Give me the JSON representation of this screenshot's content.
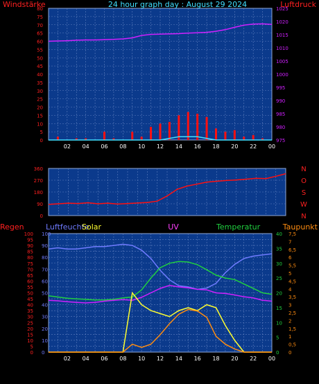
{
  "header": {
    "left": "Windstärke",
    "center": "24 hour graph day : August 29 2024",
    "right": "Luftdruck"
  },
  "colors": {
    "background": "#000000",
    "plot_bg": "#0b3a8c",
    "grid": "#5f7fbf",
    "red": "#ff1010",
    "cyan": "#40e0ff",
    "magenta": "#d020ff",
    "blue_humidity": "#6f7bff",
    "green": "#20d040",
    "yellow": "#ffff30",
    "orange": "#ff8c10",
    "pink": "#ff40ff"
  },
  "chart_data": [
    {
      "type": "line",
      "panel": "wind-pressure",
      "x": [
        0,
        1,
        2,
        3,
        4,
        5,
        6,
        7,
        8,
        9,
        10,
        11,
        12,
        13,
        14,
        15,
        16,
        17,
        18,
        19,
        20,
        21,
        22,
        23,
        24
      ],
      "x_tick_labels": [
        "02",
        "04",
        "06",
        "08",
        "10",
        "12",
        "14",
        "16",
        "18",
        "20",
        "22",
        "00"
      ],
      "left_axis": {
        "label": "Windstärke",
        "ticks": [
          "0",
          "5",
          "10",
          "15",
          "20",
          "25",
          "30",
          "35",
          "40",
          "45",
          "50",
          "55",
          "60",
          "65",
          "70",
          "75",
          "80"
        ],
        "ylim": [
          0,
          80
        ]
      },
      "right_axis": {
        "label": "Luftdruck",
        "ticks": [
          "975",
          "980",
          "985",
          "990",
          "995",
          "1000",
          "1005",
          "1010",
          "1015",
          "1020",
          "1025"
        ],
        "ylim": [
          975,
          1025
        ]
      },
      "series": [
        {
          "name": "Luftdruck",
          "color": "#d020ff",
          "axis": "right",
          "values": [
            1012.5,
            1012.6,
            1012.7,
            1012.9,
            1013.0,
            1013.0,
            1013.1,
            1013.2,
            1013.4,
            1013.8,
            1014.7,
            1015.1,
            1015.2,
            1015.3,
            1015.4,
            1015.6,
            1015.7,
            1015.9,
            1016.3,
            1016.9,
            1017.8,
            1018.6,
            1019.0,
            1019.1,
            1018.9
          ]
        },
        {
          "color": "#ff1010",
          "axis": "left",
          "style": "bars",
          "values": [
            0,
            2,
            0,
            1,
            1,
            0,
            5,
            1,
            0,
            5,
            2,
            8,
            10,
            11,
            15,
            17,
            16,
            14,
            7,
            5,
            6,
            2,
            3,
            1,
            0
          ]
        },
        {
          "color": "#40e0ff",
          "axis": "left",
          "values": [
            0,
            0,
            0,
            0,
            0,
            0,
            0,
            0,
            0,
            0,
            0,
            0,
            0,
            1,
            2,
            2,
            2,
            1,
            0,
            0,
            0,
            0,
            0,
            0,
            0
          ]
        }
      ]
    },
    {
      "type": "line",
      "panel": "wind-direction",
      "x": [
        0,
        1,
        2,
        3,
        4,
        5,
        6,
        7,
        8,
        9,
        10,
        11,
        12,
        13,
        14,
        15,
        16,
        17,
        18,
        19,
        20,
        21,
        22,
        23,
        24
      ],
      "x_tick_labels": [
        "02",
        "04",
        "06",
        "08",
        "10",
        "12",
        "14",
        "16",
        "18",
        "20",
        "22",
        "00"
      ],
      "left_axis": {
        "ticks": [
          "0",
          "90",
          "180",
          "270",
          "360"
        ],
        "ylim": [
          0,
          360
        ]
      },
      "right_axis": {
        "ticks": [
          "N",
          "W",
          "S",
          "O",
          "N"
        ]
      },
      "series": [
        {
          "color": "#ff1010",
          "values": [
            85,
            90,
            95,
            92,
            98,
            90,
            95,
            88,
            92,
            96,
            100,
            110,
            150,
            200,
            225,
            240,
            255,
            262,
            268,
            272,
            278,
            285,
            282,
            300,
            320
          ]
        }
      ]
    },
    {
      "type": "line",
      "panel": "weather",
      "x": [
        0,
        1,
        2,
        3,
        4,
        5,
        6,
        7,
        8,
        9,
        10,
        11,
        12,
        13,
        14,
        15,
        16,
        17,
        18,
        19,
        20,
        21,
        22,
        23,
        24
      ],
      "x_tick_labels": [
        "02",
        "04",
        "06",
        "08",
        "10",
        "12",
        "14",
        "16",
        "18",
        "20",
        "22",
        "00"
      ],
      "header_labels": {
        "rain": "Regen",
        "humidity": "Luftfeuchte",
        "solar": "Solar",
        "uv": "UV",
        "temperature": "Temperatur",
        "dewpoint": "Taupunkt"
      },
      "axes": {
        "rain": {
          "ticks": [
            "0",
            "5",
            "10",
            "15",
            "20",
            "25",
            "30",
            "35",
            "40",
            "45",
            "50",
            "55",
            "60",
            "65",
            "70",
            "75",
            "80",
            "85",
            "90",
            "95",
            "100"
          ],
          "ylim": [
            0,
            100
          ]
        },
        "humidity": {
          "ticks": [
            "0",
            "10",
            "20",
            "30",
            "40",
            "50",
            "60",
            "70",
            "80",
            "90",
            "100"
          ],
          "ylim": [
            0,
            100
          ]
        },
        "temperature": {
          "ticks": [
            "0",
            "5",
            "10",
            "15",
            "20",
            "25",
            "30",
            "35",
            "40"
          ],
          "ylim": [
            0,
            40
          ]
        },
        "uv": {
          "ticks": [
            "0",
            "0,5",
            "1",
            "1,5",
            "2",
            "2,5",
            "3",
            "3,5",
            "4",
            "4,5",
            "5",
            "5,5",
            "6",
            "6,5",
            "7",
            "7,5"
          ],
          "ylim": [
            0,
            7.5
          ]
        }
      },
      "series": [
        {
          "name": "Luftfeuchte",
          "color": "#6f7bff",
          "axis": "humidity",
          "values": [
            87,
            88,
            87,
            87,
            88,
            89,
            89,
            90,
            91,
            90,
            86,
            79,
            69,
            61,
            56,
            55,
            53,
            54,
            58,
            67,
            74,
            79,
            81,
            82,
            83
          ]
        },
        {
          "name": "Temperatur",
          "color": "#20d040",
          "axis": "temperature",
          "values": [
            19.0,
            18.6,
            18.2,
            18.0,
            17.8,
            17.6,
            17.6,
            17.8,
            18.3,
            18.6,
            21.0,
            25.0,
            28.5,
            30.0,
            30.6,
            30.4,
            29.5,
            27.8,
            26.0,
            25.0,
            24.5,
            23.0,
            21.5,
            20.0,
            19.5
          ]
        },
        {
          "name": "Taupunkt",
          "color": "#d020ff",
          "axis": "temperature",
          "values": [
            17.5,
            17.3,
            17.0,
            16.8,
            16.6,
            16.8,
            17.2,
            17.5,
            17.7,
            17.5,
            18.5,
            20.0,
            21.5,
            22.5,
            22.0,
            21.7,
            21.2,
            21.0,
            20.0,
            19.8,
            19.3,
            18.7,
            18.3,
            17.5,
            17.2
          ]
        },
        {
          "name": "Solar",
          "color": "#ffff30",
          "axis": "temperature",
          "values": [
            0,
            0,
            0,
            0,
            0,
            0,
            0,
            0,
            0,
            20,
            16,
            14,
            13,
            12,
            14,
            15,
            14,
            16,
            15,
            9,
            4,
            0,
            0,
            0,
            0
          ]
        },
        {
          "name": "UV",
          "color": "#ff8c10",
          "axis": "uv",
          "values": [
            0,
            0,
            0,
            0,
            0,
            0,
            0,
            0,
            0,
            0.5,
            0.3,
            0.5,
            1.1,
            1.8,
            2.4,
            2.7,
            2.6,
            2.2,
            1.0,
            0.5,
            0.2,
            0,
            0,
            0,
            0
          ]
        }
      ]
    }
  ]
}
